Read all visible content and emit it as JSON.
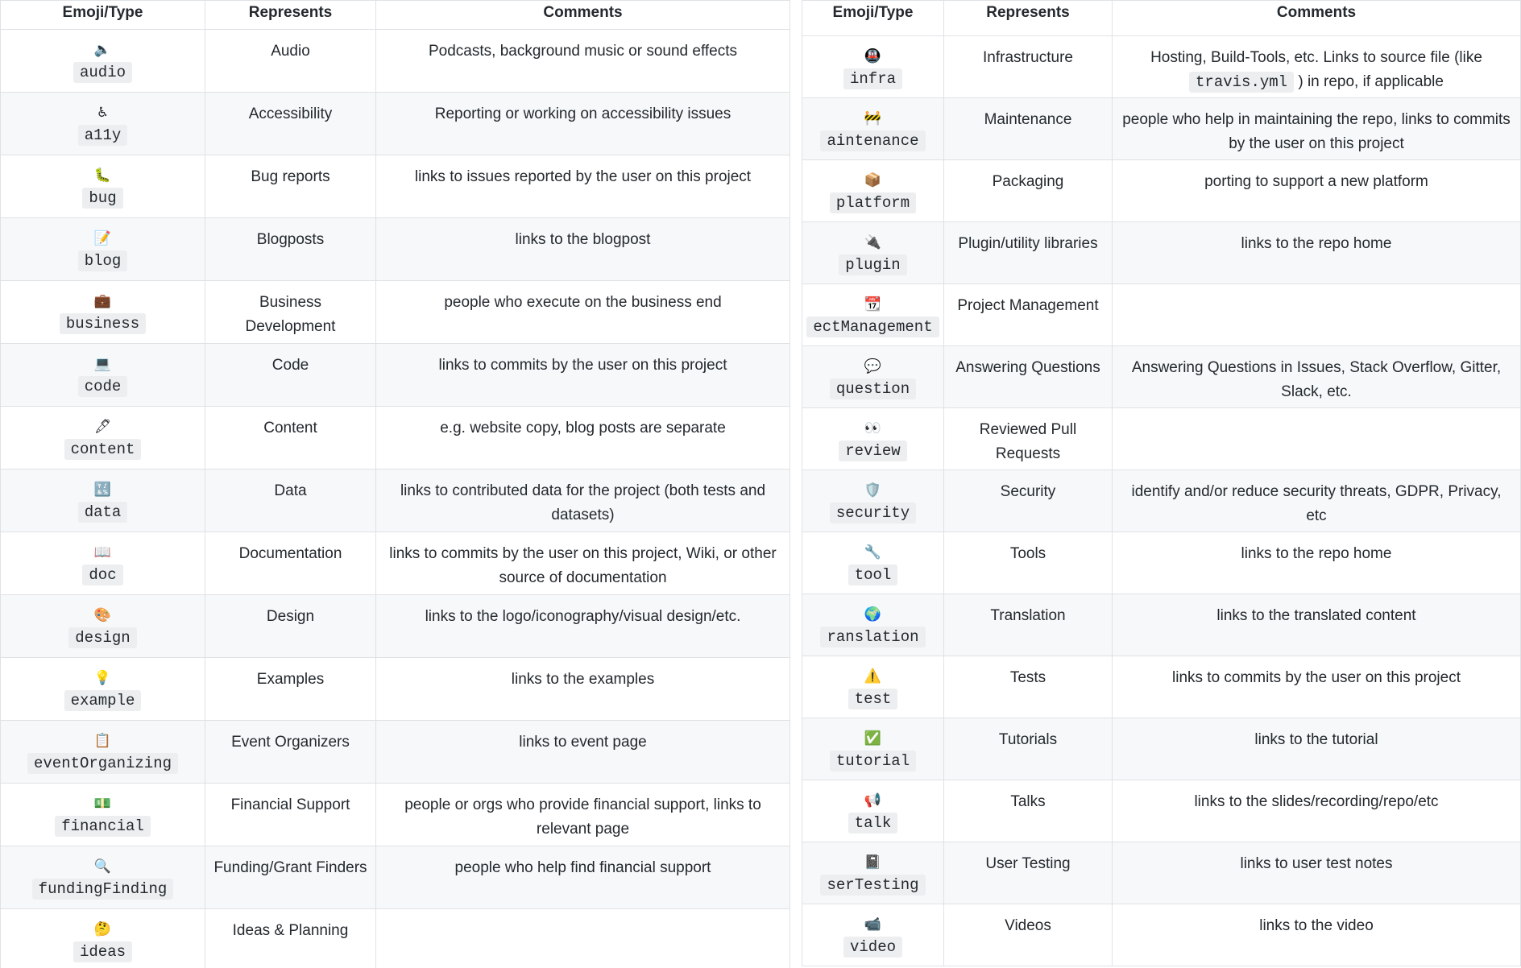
{
  "left": {
    "headers": [
      "Emoji/Type",
      "Represents",
      "Comments"
    ],
    "rows": [
      {
        "emoji": "🔈",
        "type": "audio",
        "represents": "Audio",
        "comments": [
          {
            "text": "Podcasts, background music or sound effects"
          }
        ]
      },
      {
        "emoji": "♿",
        "type": "a11y",
        "represents": "Accessibility",
        "comments": [
          {
            "text": "Reporting or working on accessibility issues"
          }
        ]
      },
      {
        "emoji": "🐛",
        "type": "bug",
        "represents": "Bug reports",
        "comments": [
          {
            "text": "links to issues reported by the user on this project"
          }
        ]
      },
      {
        "emoji": "📝",
        "type": "blog",
        "represents": "Blogposts",
        "comments": [
          {
            "text": "links to the blogpost"
          }
        ]
      },
      {
        "emoji": "💼",
        "type": "business",
        "represents": "Business Development",
        "comments": [
          {
            "text": "people who execute on the business end"
          }
        ]
      },
      {
        "emoji": "💻",
        "type": "code",
        "represents": "Code",
        "comments": [
          {
            "text": "links to commits by the user on this project"
          }
        ]
      },
      {
        "emoji": "🖋",
        "type": "content",
        "represents": "Content",
        "comments": [
          {
            "text": "e.g. website copy, blog posts are separate"
          }
        ]
      },
      {
        "emoji": "🔣",
        "type": "data",
        "represents": "Data",
        "comments": [
          {
            "text": "links to contributed data for the project (both tests and datasets)"
          }
        ]
      },
      {
        "emoji": "📖",
        "type": "doc",
        "represents": "Documentation",
        "comments": [
          {
            "text": "links to commits by the user on this project, Wiki, or other source of documentation"
          }
        ]
      },
      {
        "emoji": "🎨",
        "type": "design",
        "represents": "Design",
        "comments": [
          {
            "text": "links to the logo/iconography/visual design/etc."
          }
        ]
      },
      {
        "emoji": "💡",
        "type": "example",
        "represents": "Examples",
        "comments": [
          {
            "text": "links to the examples"
          }
        ]
      },
      {
        "emoji": "📋",
        "type": "eventOrganizing",
        "represents": "Event Organizers",
        "comments": [
          {
            "text": "links to event page"
          }
        ]
      },
      {
        "emoji": "💵",
        "type": "financial",
        "represents": "Financial Support",
        "comments": [
          {
            "text": "people or orgs who provide financial support, links to relevant page"
          }
        ]
      },
      {
        "emoji": "🔍",
        "type": "fundingFinding",
        "represents": "Funding/Grant Finders",
        "comments": [
          {
            "text": "people who help find financial support"
          }
        ]
      },
      {
        "emoji": "🤔",
        "type": "ideas",
        "represents": "Ideas & Planning"
      }
    ]
  },
  "right": {
    "headers": [
      "Emoji/Type",
      "Represents",
      "Comments"
    ],
    "rows": [
      {
        "emoji": "🚇",
        "type": "infra",
        "represents": "Infrastructure",
        "comments": [
          {
            "text": "Hosting, Build-Tools, etc. Links to source file (like "
          },
          {
            "code": "travis.yml"
          },
          {
            "text": " ) in repo, if applicable"
          }
        ]
      },
      {
        "emoji": "🚧",
        "type": "aintenance",
        "represents": "Maintenance",
        "comments": [
          {
            "text": "people who help in maintaining the repo, links to commits by the user on this project"
          }
        ]
      },
      {
        "emoji": "📦",
        "type": "platform",
        "represents": "Packaging",
        "comments": [
          {
            "text": "porting to support a new platform"
          }
        ]
      },
      {
        "emoji": "🔌",
        "type": "plugin",
        "represents": "Plugin/utility libraries",
        "comments": [
          {
            "text": "links to the repo home"
          }
        ]
      },
      {
        "emoji": "📆",
        "type": "ectManagement",
        "represents": "Project Management"
      },
      {
        "emoji": "💬",
        "type": "question",
        "represents": "Answering Questions",
        "comments": [
          {
            "text": "Answering Questions in Issues, Stack Overflow, Gitter, Slack, etc."
          }
        ]
      },
      {
        "emoji": "👀",
        "type": "review",
        "represents": "Reviewed Pull Requests"
      },
      {
        "emoji": "🛡️",
        "type": "security",
        "represents": "Security",
        "comments": [
          {
            "text": "identify and/or reduce security threats, GDPR, Privacy, etc"
          }
        ]
      },
      {
        "emoji": "🔧",
        "type": "tool",
        "represents": "Tools",
        "comments": [
          {
            "text": "links to the repo home"
          }
        ]
      },
      {
        "emoji": "🌍",
        "type": "ranslation",
        "represents": "Translation",
        "comments": [
          {
            "text": "links to the translated content"
          }
        ]
      },
      {
        "emoji": "⚠️",
        "type": "test",
        "represents": "Tests",
        "comments": [
          {
            "text": "links to commits by the user on this project"
          }
        ]
      },
      {
        "emoji": "✅",
        "type": "tutorial",
        "represents": "Tutorials",
        "comments": [
          {
            "text": "links to the tutorial"
          }
        ]
      },
      {
        "emoji": "📢",
        "type": "talk",
        "represents": "Talks",
        "comments": [
          {
            "text": "links to the slides/recording/repo/etc"
          }
        ]
      },
      {
        "emoji": "📓",
        "type": "serTesting",
        "represents": "User Testing",
        "comments": [
          {
            "text": "links to user test notes"
          }
        ]
      },
      {
        "emoji": "📹",
        "type": "video",
        "represents": "Videos",
        "comments": [
          {
            "text": "links to the video"
          }
        ]
      }
    ]
  }
}
